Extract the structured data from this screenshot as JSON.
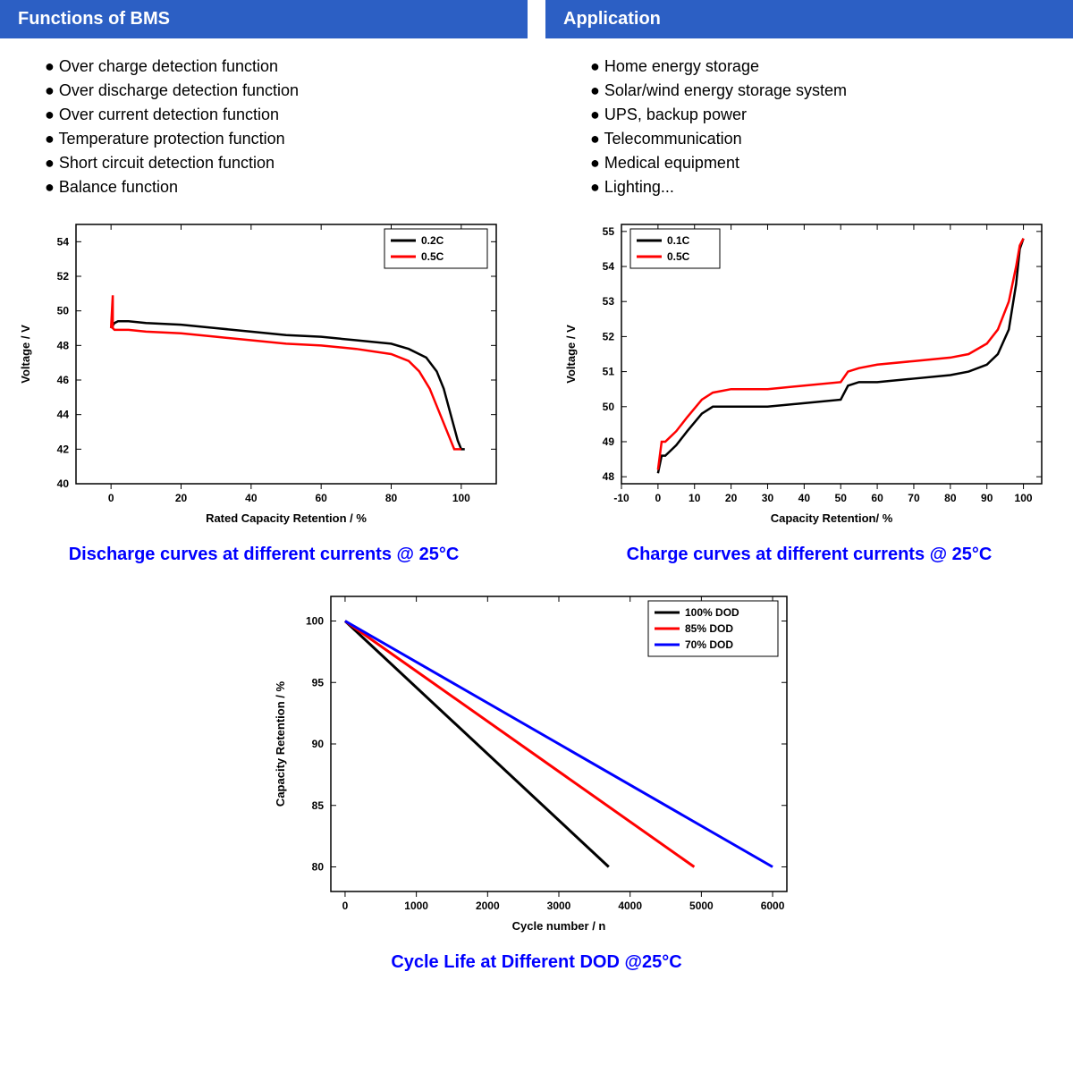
{
  "headers": {
    "left": "Functions of BMS",
    "right": "Application"
  },
  "bms_functions": [
    "Over charge detection function",
    "Over discharge detection function",
    "Over current detection function",
    "Temperature protection function",
    "Short circuit detection function",
    "Balance function"
  ],
  "applications": [
    "Home energy storage",
    "Solar/wind energy storage system",
    "UPS, backup power",
    "Telecommunication",
    "Medical equipment",
    "Lighting..."
  ],
  "discharge_chart": {
    "caption": "Discharge curves at different currents @ 25°C",
    "xlabel": "Rated Capacity Retention / %",
    "ylabel": "Voltage / V",
    "xlim": [
      -10,
      110
    ],
    "ylim": [
      40,
      55
    ],
    "xticks": [
      0,
      20,
      40,
      60,
      80,
      100
    ],
    "yticks": [
      40,
      42,
      44,
      46,
      48,
      50,
      52,
      54
    ],
    "legend": [
      {
        "label": "0.2C",
        "color": "#000000"
      },
      {
        "label": "0.5C",
        "color": "#ff0000"
      }
    ],
    "series": [
      {
        "color": "#000000",
        "width": 2.5,
        "points": [
          [
            0,
            49.0
          ],
          [
            1,
            49.3
          ],
          [
            2,
            49.4
          ],
          [
            5,
            49.4
          ],
          [
            10,
            49.3
          ],
          [
            20,
            49.2
          ],
          [
            30,
            49.0
          ],
          [
            40,
            48.8
          ],
          [
            50,
            48.6
          ],
          [
            60,
            48.5
          ],
          [
            70,
            48.3
          ],
          [
            80,
            48.1
          ],
          [
            85,
            47.8
          ],
          [
            90,
            47.3
          ],
          [
            93,
            46.5
          ],
          [
            95,
            45.5
          ],
          [
            97,
            44.0
          ],
          [
            99,
            42.5
          ],
          [
            100,
            42.0
          ],
          [
            101,
            42.0
          ]
        ]
      },
      {
        "color": "#ff0000",
        "width": 2.5,
        "points": [
          [
            0,
            49.0
          ],
          [
            0.5,
            50.9
          ],
          [
            0.5,
            49.0
          ],
          [
            1,
            48.9
          ],
          [
            2,
            48.9
          ],
          [
            5,
            48.9
          ],
          [
            10,
            48.8
          ],
          [
            20,
            48.7
          ],
          [
            30,
            48.5
          ],
          [
            40,
            48.3
          ],
          [
            50,
            48.1
          ],
          [
            60,
            48.0
          ],
          [
            70,
            47.8
          ],
          [
            80,
            47.5
          ],
          [
            85,
            47.1
          ],
          [
            88,
            46.5
          ],
          [
            91,
            45.5
          ],
          [
            94,
            44.0
          ],
          [
            97,
            42.5
          ],
          [
            98,
            42.0
          ],
          [
            100,
            42.0
          ]
        ]
      }
    ],
    "label_fontsize": 13,
    "tick_fontsize": 12,
    "legend_fontsize": 12
  },
  "charge_chart": {
    "caption": "Charge curves at different currents @ 25°C",
    "xlabel": "Capacity Retention/ %",
    "ylabel": "Voltage / V",
    "xlim": [
      -10,
      105
    ],
    "ylim": [
      47.8,
      55.2
    ],
    "xticks": [
      -10,
      0,
      10,
      20,
      30,
      40,
      50,
      60,
      70,
      80,
      90,
      100
    ],
    "yticks": [
      48,
      49,
      50,
      51,
      52,
      53,
      54,
      55
    ],
    "legend": [
      {
        "label": "0.1C",
        "color": "#000000"
      },
      {
        "label": "0.5C",
        "color": "#ff0000"
      }
    ],
    "series": [
      {
        "color": "#000000",
        "width": 2.5,
        "points": [
          [
            0,
            48.1
          ],
          [
            1,
            48.6
          ],
          [
            2,
            48.6
          ],
          [
            3,
            48.7
          ],
          [
            5,
            48.9
          ],
          [
            8,
            49.3
          ],
          [
            12,
            49.8
          ],
          [
            15,
            50.0
          ],
          [
            20,
            50.0
          ],
          [
            30,
            50.0
          ],
          [
            40,
            50.1
          ],
          [
            50,
            50.2
          ],
          [
            52,
            50.6
          ],
          [
            55,
            50.7
          ],
          [
            60,
            50.7
          ],
          [
            70,
            50.8
          ],
          [
            80,
            50.9
          ],
          [
            85,
            51.0
          ],
          [
            90,
            51.2
          ],
          [
            93,
            51.5
          ],
          [
            96,
            52.2
          ],
          [
            98,
            53.5
          ],
          [
            99,
            54.5
          ],
          [
            100,
            54.8
          ]
        ]
      },
      {
        "color": "#ff0000",
        "width": 2.5,
        "points": [
          [
            0,
            48.2
          ],
          [
            1,
            49.0
          ],
          [
            2,
            49.0
          ],
          [
            3,
            49.1
          ],
          [
            5,
            49.3
          ],
          [
            8,
            49.7
          ],
          [
            12,
            50.2
          ],
          [
            15,
            50.4
          ],
          [
            20,
            50.5
          ],
          [
            30,
            50.5
          ],
          [
            40,
            50.6
          ],
          [
            50,
            50.7
          ],
          [
            52,
            51.0
          ],
          [
            55,
            51.1
          ],
          [
            60,
            51.2
          ],
          [
            70,
            51.3
          ],
          [
            80,
            51.4
          ],
          [
            85,
            51.5
          ],
          [
            90,
            51.8
          ],
          [
            93,
            52.2
          ],
          [
            96,
            53.0
          ],
          [
            98,
            54.0
          ],
          [
            99,
            54.6
          ],
          [
            100,
            54.8
          ]
        ]
      }
    ],
    "label_fontsize": 13,
    "tick_fontsize": 12,
    "legend_fontsize": 12
  },
  "cycle_chart": {
    "caption": "Cycle Life at Different DOD @25°C",
    "xlabel": "Cycle number / n",
    "ylabel": "Capacity Retention / %",
    "xlim": [
      -200,
      6200
    ],
    "ylim": [
      78,
      102
    ],
    "xticks": [
      0,
      1000,
      2000,
      3000,
      4000,
      5000,
      6000
    ],
    "yticks": [
      80,
      85,
      90,
      95,
      100
    ],
    "legend": [
      {
        "label": "100% DOD",
        "color": "#000000"
      },
      {
        "label": "85% DOD",
        "color": "#ff0000"
      },
      {
        "label": "70% DOD",
        "color": "#0000ff"
      }
    ],
    "series": [
      {
        "color": "#000000",
        "width": 3,
        "points": [
          [
            0,
            100
          ],
          [
            3700,
            80
          ]
        ]
      },
      {
        "color": "#ff0000",
        "width": 3,
        "points": [
          [
            0,
            100
          ],
          [
            4900,
            80
          ]
        ]
      },
      {
        "color": "#0000ff",
        "width": 3,
        "points": [
          [
            0,
            100
          ],
          [
            6000,
            80
          ]
        ]
      }
    ],
    "label_fontsize": 13,
    "tick_fontsize": 12,
    "legend_fontsize": 12
  },
  "colors": {
    "header_bg": "#2c5fc4",
    "header_text": "#ffffff",
    "caption_color": "#0000ff",
    "body_text": "#000000",
    "axis_color": "#000000"
  }
}
